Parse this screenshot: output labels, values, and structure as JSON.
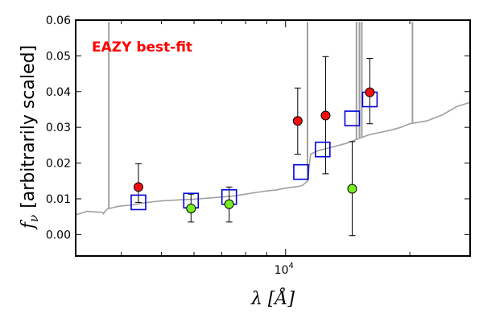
{
  "chart_data": {
    "type": "scatter",
    "annotation": "EAZY best-fit",
    "xlabel": "λ [Å]",
    "ylabel": "f_ν [arbitrarily scaled]",
    "ylabel_symbol": "f",
    "ylabel_subscript": "ν",
    "ylabel_text": "[arbitrarily scaled]",
    "x_scale": "log",
    "xlim": [
      3100,
      28000
    ],
    "ylim": [
      -0.006,
      0.06
    ],
    "yticks": [
      0.0,
      0.01,
      0.02,
      0.03,
      0.04,
      0.05,
      0.06
    ],
    "ytick_labels": [
      "0.00",
      "0.01",
      "0.02",
      "0.03",
      "0.04",
      "0.05",
      "0.06"
    ],
    "xtick_major": [
      10000
    ],
    "xtick_major_labels": [
      "10^4"
    ],
    "xtick_minor": [
      4000,
      5000,
      6000,
      7000,
      8000,
      9000,
      20000
    ],
    "grid": false,
    "colors": {
      "annotation": "#ff0000",
      "template": "#a0a0a0",
      "model_box": "#0000dd",
      "observed": "#ee1111",
      "second": "#77ee22",
      "errorbar": "#000000"
    },
    "series": [
      {
        "marker": "square-open",
        "x": [
          4400,
          5900,
          7300,
          10900,
          12300,
          14500,
          16000
        ],
        "y": [
          0.009,
          0.0095,
          0.0105,
          0.0175,
          0.0238,
          0.0325,
          0.0378
        ]
      },
      {
        "marker": "circle-red",
        "x": [
          4400,
          10700,
          12500,
          16000
        ],
        "y": [
          0.0133,
          0.0318,
          0.0333,
          0.0398
        ],
        "yerr_low": [
          0.009,
          0.0225,
          0.017,
          0.031
        ],
        "yerr_high": [
          0.0198,
          0.041,
          0.0498,
          0.0493
        ]
      },
      {
        "marker": "circle-green",
        "x": [
          5900,
          7300,
          14500
        ],
        "y": [
          0.0073,
          0.0085,
          0.0128
        ],
        "yerr_low": [
          0.0035,
          0.0035,
          -0.0003
        ],
        "yerr_high": [
          0.0113,
          0.0133,
          0.026
        ]
      }
    ],
    "template_spectrum": {
      "x": [
        3100,
        3300,
        3500,
        3600,
        3620,
        3640,
        3700,
        3800,
        3900,
        4000,
        4200,
        4500,
        4800,
        5000,
        5500,
        6000,
        6500,
        7000,
        7500,
        8000,
        8500,
        9000,
        9500,
        10000,
        10500,
        10800,
        11000,
        11300,
        11500,
        12000,
        13000,
        14000,
        15000,
        16000,
        18000,
        19000,
        20000,
        22000,
        24000,
        26000,
        28000
      ],
      "y": [
        0.0055,
        0.0065,
        0.0063,
        0.0062,
        0.0058,
        0.0063,
        0.0072,
        0.0075,
        0.0078,
        0.008,
        0.0082,
        0.0088,
        0.0092,
        0.0094,
        0.0097,
        0.0099,
        0.0102,
        0.0105,
        0.0108,
        0.0113,
        0.0118,
        0.0122,
        0.0125,
        0.013,
        0.0133,
        0.0135,
        0.0138,
        0.015,
        0.0225,
        0.0235,
        0.0245,
        0.0255,
        0.0268,
        0.028,
        0.0292,
        0.03,
        0.031,
        0.0318,
        0.0335,
        0.0358,
        0.037
      ]
    },
    "emission_lines": [
      {
        "x": 3730,
        "peak": 0.06
      },
      {
        "x": 11300,
        "peak": 0.06
      },
      {
        "x": 14850,
        "peak": 0.06
      },
      {
        "x": 15100,
        "peak": 0.06
      },
      {
        "x": 15300,
        "peak": 0.06
      },
      {
        "x": 20300,
        "peak": 0.06
      }
    ]
  }
}
